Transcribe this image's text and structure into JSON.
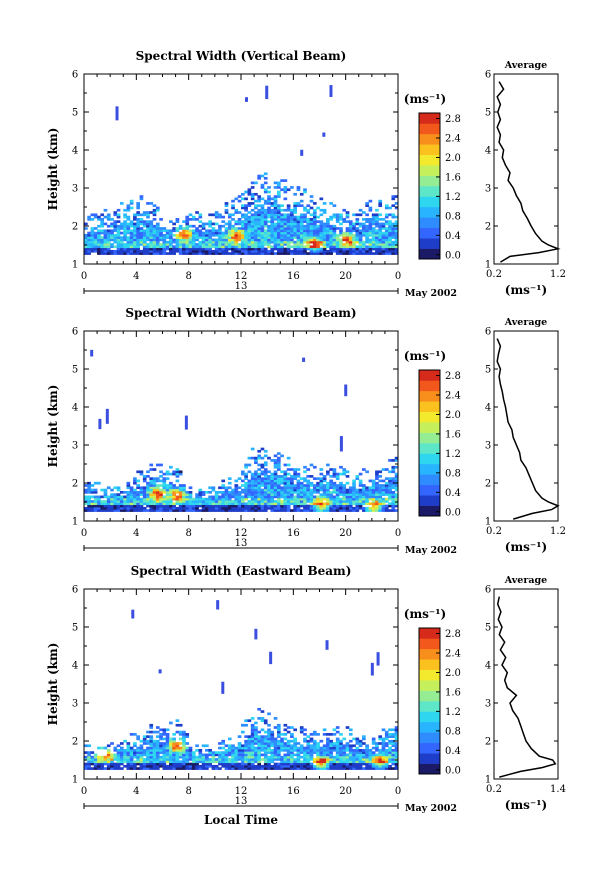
{
  "colorbar": {
    "unit_label": "(ms⁻¹)",
    "ticks": [
      "0.0",
      "0.4",
      "0.8",
      "1.2",
      "1.6",
      "2.0",
      "2.4",
      "2.8"
    ],
    "colors": [
      "#1a1a66",
      "#1e3dc8",
      "#3366ff",
      "#2f8cff",
      "#28b4ff",
      "#2ed6ef",
      "#5de6c7",
      "#94ec93",
      "#c6f05b",
      "#f3ea2e",
      "#fbc21f",
      "#f88f1d",
      "#f2571c",
      "#d62a1a"
    ]
  },
  "date_label": "May 2002",
  "day_label": "13",
  "x_ticks": [
    "0",
    "4",
    "8",
    "12",
    "16",
    "20",
    "0"
  ],
  "y_ticks": [
    "1",
    "2",
    "3",
    "4",
    "5",
    "6"
  ],
  "x_axis_label": "Local Time",
  "y_axis_label": "Height (km)",
  "average_title": "Average",
  "average_xlabel": "(ms⁻¹)",
  "chart_data": [
    {
      "type": "heatmap",
      "title": "Spectral Width (Vertical Beam)",
      "xlabel": "",
      "ylabel": "Height (km)",
      "xlim": [
        0,
        24
      ],
      "ylim": [
        1,
        6
      ],
      "clim": [
        0.0,
        3.0
      ],
      "echo_top_km": [
        [
          0,
          2.2
        ],
        [
          3,
          2.6
        ],
        [
          4.5,
          2.8
        ],
        [
          6.5,
          2.2
        ],
        [
          8,
          2.3
        ],
        [
          10,
          2.4
        ],
        [
          12,
          2.8
        ],
        [
          13.5,
          3.4
        ],
        [
          16,
          3.1
        ],
        [
          18,
          2.8
        ],
        [
          20,
          2.4
        ],
        [
          22,
          2.7
        ],
        [
          24,
          2.8
        ]
      ],
      "hot_spots": [
        [
          7.5,
          1.75
        ],
        [
          11.5,
          1.7
        ],
        [
          17.5,
          1.5
        ],
        [
          20,
          1.6
        ]
      ],
      "average": {
        "title": "Average",
        "xlim": [
          0.2,
          1.2
        ],
        "x_ticks": [
          "0.2",
          "1.2"
        ],
        "height_km": [
          1.05,
          1.2,
          1.3,
          1.4,
          1.5,
          1.6,
          1.8,
          2.0,
          2.2,
          2.4,
          2.6,
          2.8,
          3.0,
          3.2,
          3.4,
          3.6,
          3.8,
          4.0,
          4.2,
          4.4,
          4.6,
          4.8,
          5.0,
          5.2,
          5.4,
          5.6,
          5.8
        ],
        "width": [
          0.3,
          0.45,
          0.9,
          1.2,
          1.05,
          0.95,
          0.85,
          0.78,
          0.72,
          0.65,
          0.62,
          0.55,
          0.5,
          0.42,
          0.45,
          0.38,
          0.33,
          0.35,
          0.28,
          0.3,
          0.25,
          0.3,
          0.26,
          0.3,
          0.25,
          0.35,
          0.28
        ]
      }
    },
    {
      "type": "heatmap",
      "title": "Spectral Width (Northward Beam)",
      "xlabel": "",
      "ylabel": "Height (km)",
      "xlim": [
        0,
        24
      ],
      "ylim": [
        1,
        6
      ],
      "clim": [
        0.0,
        3.0
      ],
      "echo_top_km": [
        [
          0,
          2.0
        ],
        [
          3,
          2.0
        ],
        [
          5,
          2.5
        ],
        [
          7,
          2.5
        ],
        [
          8,
          1.9
        ],
        [
          10,
          1.9
        ],
        [
          12,
          2.4
        ],
        [
          13,
          3.0
        ],
        [
          15,
          2.9
        ],
        [
          16,
          2.5
        ],
        [
          18,
          2.5
        ],
        [
          21,
          2.3
        ],
        [
          23,
          2.5
        ],
        [
          24,
          2.7
        ]
      ],
      "hot_spots": [
        [
          5.5,
          1.7
        ],
        [
          7,
          1.65
        ],
        [
          18,
          1.4
        ],
        [
          22,
          1.35
        ]
      ],
      "average": {
        "title": "Average",
        "xlim": [
          0.2,
          1.2
        ],
        "x_ticks": [
          "0.2",
          "1.2"
        ],
        "height_km": [
          1.05,
          1.2,
          1.3,
          1.4,
          1.5,
          1.6,
          1.8,
          2.0,
          2.2,
          2.4,
          2.6,
          2.8,
          3.0,
          3.2,
          3.4,
          3.6,
          3.8,
          4.0,
          4.2,
          4.4,
          4.6,
          4.8,
          5.0,
          5.2,
          5.4,
          5.6,
          5.8
        ],
        "width": [
          0.5,
          0.8,
          1.1,
          1.2,
          1.05,
          0.95,
          0.85,
          0.8,
          0.75,
          0.7,
          0.62,
          0.6,
          0.55,
          0.5,
          0.48,
          0.42,
          0.4,
          0.38,
          0.35,
          0.33,
          0.3,
          0.28,
          0.3,
          0.25,
          0.27,
          0.3,
          0.25
        ]
      }
    },
    {
      "type": "heatmap",
      "title": "Spectral Width (Eastward Beam)",
      "xlabel": "Local Time",
      "ylabel": "Height (km)",
      "xlim": [
        0,
        24
      ],
      "ylim": [
        1,
        6
      ],
      "clim": [
        0.0,
        3.0
      ],
      "echo_top_km": [
        [
          0,
          1.9
        ],
        [
          2,
          1.9
        ],
        [
          5,
          2.4
        ],
        [
          7,
          2.6
        ],
        [
          8.5,
          1.9
        ],
        [
          10,
          1.9
        ],
        [
          12,
          2.4
        ],
        [
          13.5,
          2.9
        ],
        [
          15,
          2.5
        ],
        [
          17,
          2.3
        ],
        [
          20,
          2.4
        ],
        [
          22,
          2.0
        ],
        [
          24,
          2.7
        ]
      ],
      "hot_spots": [
        [
          1.5,
          1.6
        ],
        [
          7,
          1.85
        ],
        [
          18,
          1.4
        ],
        [
          22.5,
          1.45
        ]
      ],
      "average": {
        "title": "Average",
        "xlim": [
          0.2,
          1.4
        ],
        "x_ticks": [
          "0.2",
          "1.4"
        ],
        "height_km": [
          1.05,
          1.2,
          1.3,
          1.4,
          1.5,
          1.6,
          1.8,
          2.0,
          2.2,
          2.4,
          2.6,
          2.8,
          3.0,
          3.2,
          3.4,
          3.6,
          3.8,
          4.0,
          4.2,
          4.4,
          4.6,
          4.8,
          5.0,
          5.2,
          5.4,
          5.6,
          5.8
        ],
        "width": [
          0.3,
          0.7,
          1.1,
          1.35,
          1.3,
          1.05,
          0.9,
          0.8,
          0.75,
          0.7,
          0.65,
          0.55,
          0.5,
          0.62,
          0.45,
          0.4,
          0.45,
          0.35,
          0.42,
          0.32,
          0.4,
          0.3,
          0.35,
          0.28,
          0.33,
          0.27,
          0.3
        ]
      }
    }
  ]
}
